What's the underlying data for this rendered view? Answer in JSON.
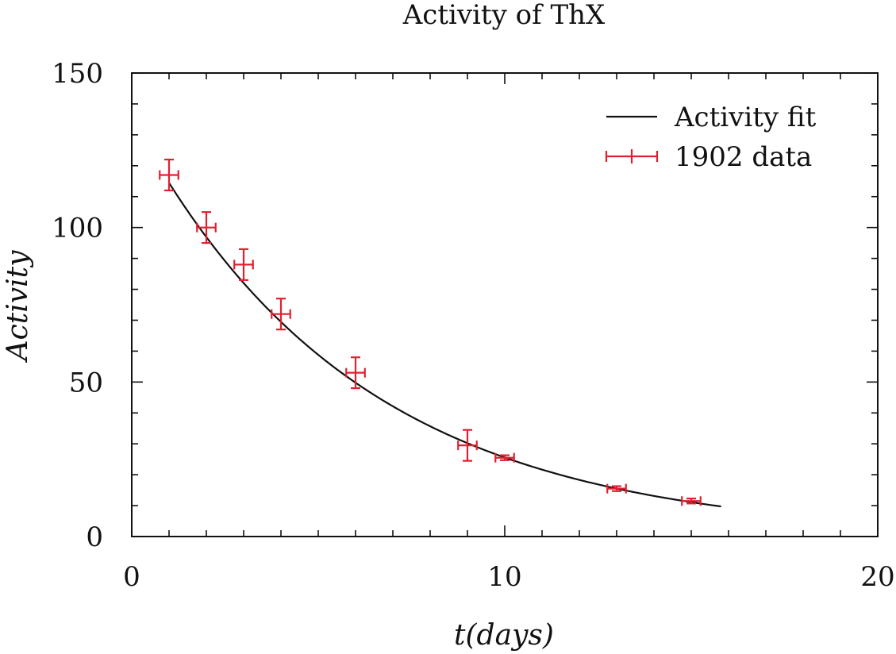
{
  "chart_data": {
    "type": "scatter",
    "title": "Activity of ThX",
    "xlabel": "t(days)",
    "ylabel": "Activity",
    "xlim": [
      0,
      20
    ],
    "ylim": [
      0,
      150
    ],
    "xticks": [
      0,
      10,
      20
    ],
    "yticks": [
      0,
      50,
      100,
      150
    ],
    "legend_position": "top-right",
    "grid": false,
    "series": [
      {
        "name": "1902 data",
        "kind": "errorbar",
        "color": "#e02030",
        "points": [
          {
            "x": 1,
            "y": 117,
            "yerr": 5,
            "xerr": 0.25
          },
          {
            "x": 2,
            "y": 100,
            "yerr": 5,
            "xerr": 0.25
          },
          {
            "x": 3,
            "y": 88,
            "yerr": 5,
            "xerr": 0.25
          },
          {
            "x": 4,
            "y": 72,
            "yerr": 5,
            "xerr": 0.25
          },
          {
            "x": 6,
            "y": 53,
            "yerr": 5,
            "xerr": 0.25
          },
          {
            "x": 9,
            "y": 29.5,
            "yerr": 5,
            "xerr": 0.25
          },
          {
            "x": 10,
            "y": 25.5,
            "yerr": 0.8,
            "xerr": 0.25
          },
          {
            "x": 13,
            "y": 15.5,
            "yerr": 0.8,
            "xerr": 0.25
          },
          {
            "x": 15,
            "y": 11.5,
            "yerr": 0.8,
            "xerr": 0.25
          }
        ]
      },
      {
        "name": "Activity fit",
        "kind": "line",
        "color": "#111111",
        "function": "A0*exp(-lambda*t)",
        "A0": 135.2,
        "lambda": 0.1665,
        "x_range": [
          1,
          15.8
        ]
      }
    ]
  }
}
